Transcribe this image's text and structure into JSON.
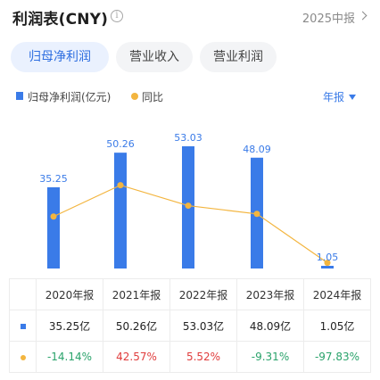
{
  "header": {
    "title": "利润表(CNY)",
    "info_icon": "info-circle-icon",
    "period": "2025中报"
  },
  "tabs": [
    {
      "label": "归母净利润",
      "active": true
    },
    {
      "label": "营业收入",
      "active": false
    },
    {
      "label": "营业利润",
      "active": false
    }
  ],
  "legend": {
    "bar": "归母净利润(亿元)",
    "line": "同比",
    "frequency": "年报"
  },
  "colors": {
    "bar": "#3a7be8",
    "line": "#f3b53f",
    "positive": "#e03c3c",
    "negative": "#2aa36b",
    "accent": "#2f6fe0"
  },
  "chart_data": {
    "type": "bar",
    "categories": [
      "2020年报",
      "2021年报",
      "2022年报",
      "2023年报",
      "2024年报"
    ],
    "series": [
      {
        "name": "归母净利润(亿元)",
        "type": "bar",
        "values": [
          35.25,
          50.26,
          53.03,
          48.09,
          1.05
        ]
      },
      {
        "name": "同比",
        "type": "line",
        "values": [
          -14.14,
          42.57,
          5.52,
          -9.31,
          -97.83
        ]
      }
    ],
    "bar_labels": [
      "35.25",
      "50.26",
      "53.03",
      "48.09",
      "1.05"
    ],
    "legend_position": "top-left",
    "grid": false
  },
  "table": {
    "headers": [
      "2020年报",
      "2021年报",
      "2022年报",
      "2023年报",
      "2024年报"
    ],
    "rows": [
      {
        "key": "bar",
        "cells": [
          "35.25亿",
          "50.26亿",
          "53.03亿",
          "48.09亿",
          "1.05亿"
        ]
      },
      {
        "key": "line",
        "cells": [
          "-14.14%",
          "42.57%",
          "5.52%",
          "-9.31%",
          "-97.83%"
        ]
      }
    ]
  }
}
